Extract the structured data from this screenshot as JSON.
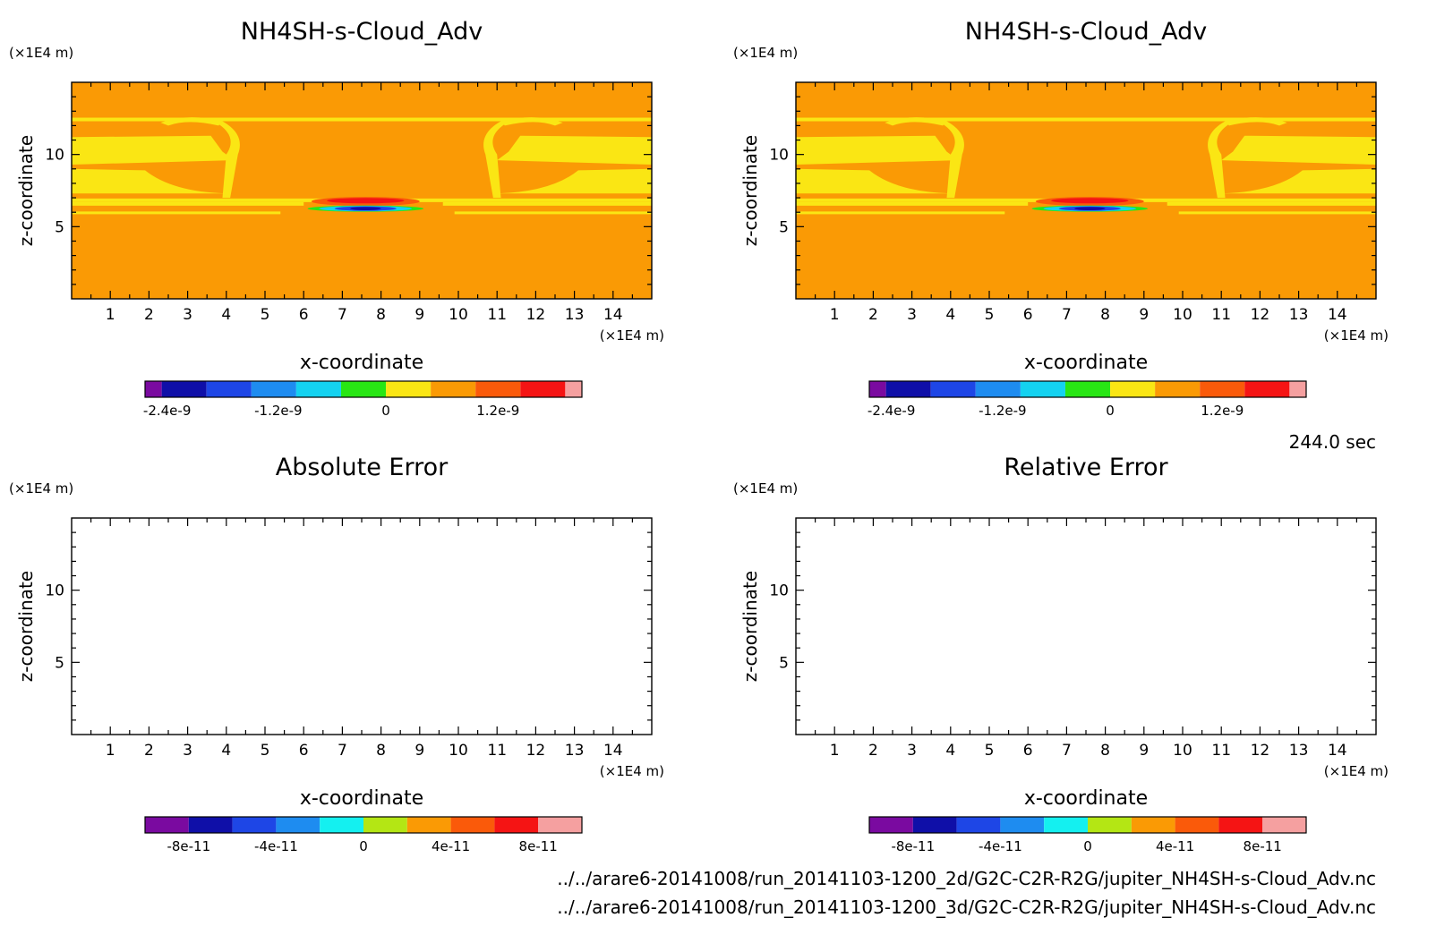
{
  "chart_data": [
    {
      "type": "heatmap",
      "title": "NH4SH-s-Cloud_Adv",
      "xlabel": "x-coordinate",
      "ylabel": "z-coordinate",
      "x_unit": "(×1E4 m)",
      "y_unit": "(×1E4 m)",
      "x_ticks": [
        "1",
        "2",
        "3",
        "4",
        "5",
        "6",
        "7",
        "8",
        "9",
        "10",
        "11",
        "12",
        "13",
        "14"
      ],
      "y_ticks": [
        "5",
        "10"
      ],
      "xlim": [
        0,
        15
      ],
      "ylim": [
        0,
        15
      ],
      "colorbar": {
        "tick_labels": [
          "-2.4e-9",
          "-1.2e-9",
          "0",
          "1.2e-9"
        ],
        "colors": [
          "#7a0aa0",
          "#0f0fa8",
          "#1e46e6",
          "#1e8cf0",
          "#14d2f0",
          "#28e614",
          "#fae614",
          "#fa9a05",
          "#fa5a0a",
          "#f51414",
          "#f5a0a0"
        ]
      }
    },
    {
      "type": "heatmap",
      "title": "NH4SH-s-Cloud_Adv",
      "xlabel": "x-coordinate",
      "ylabel": "z-coordinate",
      "x_unit": "(×1E4 m)",
      "y_unit": "(×1E4 m)",
      "x_ticks": [
        "1",
        "2",
        "3",
        "4",
        "5",
        "6",
        "7",
        "8",
        "9",
        "10",
        "11",
        "12",
        "13",
        "14"
      ],
      "y_ticks": [
        "5",
        "10"
      ],
      "xlim": [
        0,
        15
      ],
      "ylim": [
        0,
        15
      ],
      "colorbar": {
        "tick_labels": [
          "-2.4e-9",
          "-1.2e-9",
          "0",
          "1.2e-9"
        ],
        "colors": [
          "#7a0aa0",
          "#0f0fa8",
          "#1e46e6",
          "#1e8cf0",
          "#14d2f0",
          "#28e614",
          "#fae614",
          "#fa9a05",
          "#fa5a0a",
          "#f51414",
          "#f5a0a0"
        ]
      }
    },
    {
      "type": "heatmap",
      "title": "Absolute Error",
      "xlabel": "x-coordinate",
      "ylabel": "z-coordinate",
      "x_unit": "(×1E4 m)",
      "y_unit": "(×1E4 m)",
      "x_ticks": [
        "1",
        "2",
        "3",
        "4",
        "5",
        "6",
        "7",
        "8",
        "9",
        "10",
        "11",
        "12",
        "13",
        "14"
      ],
      "y_ticks": [
        "5",
        "10"
      ],
      "xlim": [
        0,
        15
      ],
      "ylim": [
        0,
        15
      ],
      "colorbar": {
        "tick_labels": [
          "-8e-11",
          "-4e-11",
          "0",
          "4e-11",
          "8e-11"
        ],
        "colors": [
          "#7a0aa0",
          "#0f0fa8",
          "#1e46e6",
          "#1e8cf0",
          "#14f0f0",
          "#b4e614",
          "#fa9a05",
          "#fa5a0a",
          "#f51414",
          "#f5a0a0"
        ]
      }
    },
    {
      "type": "heatmap",
      "title": "Relative Error",
      "xlabel": "x-coordinate",
      "ylabel": "z-coordinate",
      "x_unit": "(×1E4 m)",
      "y_unit": "(×1E4 m)",
      "x_ticks": [
        "1",
        "2",
        "3",
        "4",
        "5",
        "6",
        "7",
        "8",
        "9",
        "10",
        "11",
        "12",
        "13",
        "14"
      ],
      "y_ticks": [
        "5",
        "10"
      ],
      "xlim": [
        0,
        15
      ],
      "ylim": [
        0,
        15
      ],
      "colorbar": {
        "tick_labels": [
          "-8e-11",
          "-4e-11",
          "0",
          "4e-11",
          "8e-11"
        ],
        "colors": [
          "#7a0aa0",
          "#0f0fa8",
          "#1e46e6",
          "#1e8cf0",
          "#14f0f0",
          "#b4e614",
          "#fa9a05",
          "#fa5a0a",
          "#f51414",
          "#f5a0a0"
        ]
      }
    }
  ],
  "time_label": "244.0 sec",
  "files": [
    "../../arare6-20141008/run_20141103-1200_2d/G2C-C2R-R2G/jupiter_NH4SH-s-Cloud_Adv.nc",
    "../../arare6-20141008/run_20141103-1200_3d/G2C-C2R-R2G/jupiter_NH4SH-s-Cloud_Adv.nc"
  ],
  "field_colors": {
    "background": "#fa9a05",
    "band": "#fae614",
    "red": "#f51414",
    "orange_red": "#fa5a0a",
    "green": "#28e614",
    "cyan": "#14d2f0",
    "blue": "#1e46e6",
    "navy": "#0f0fa8"
  }
}
